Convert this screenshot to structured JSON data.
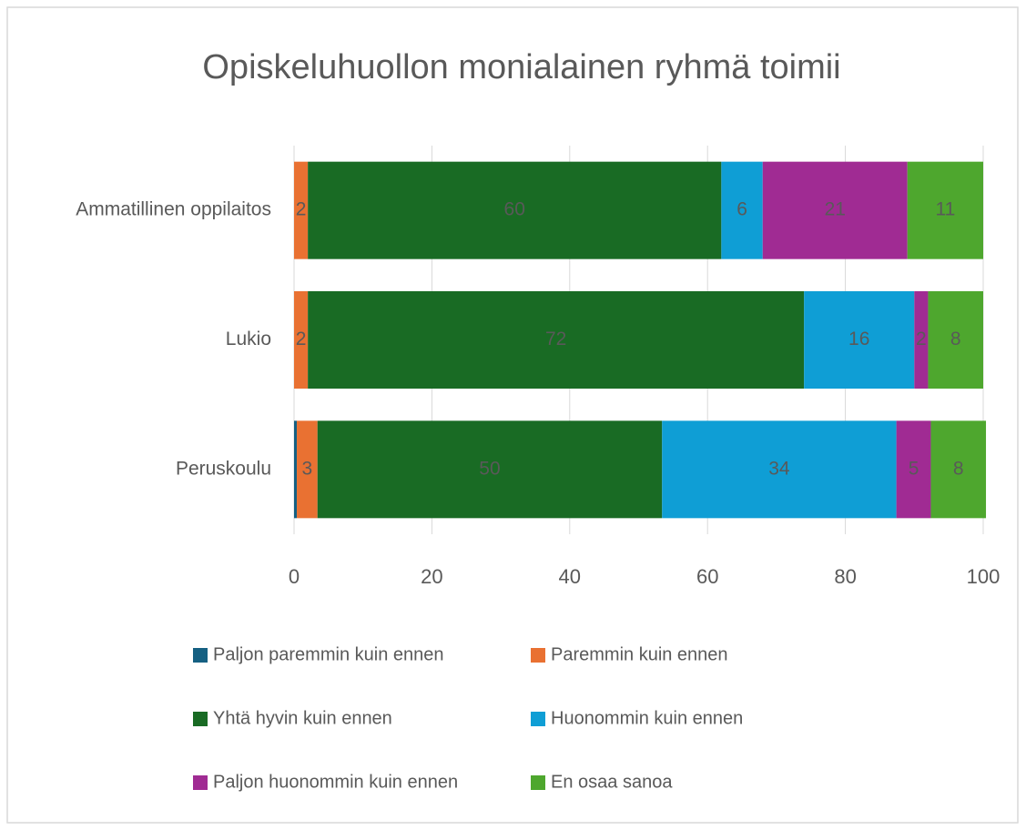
{
  "chart_data": {
    "type": "stacked_barh",
    "title": "Opiskeluhuollon monialainen ryhmä toimii",
    "categories": [
      "Ammatillinen oppilaitos",
      "Lukio",
      "Peruskoulu"
    ],
    "series": [
      {
        "name": "Paljon paremmin kuin ennen",
        "color": "#156082",
        "label_color": "#404040",
        "values": [
          0,
          0,
          0.4
        ]
      },
      {
        "name": "Paremmin kuin ennen",
        "color": "#e97132",
        "label_color": "#404040",
        "values": [
          2,
          2,
          3
        ]
      },
      {
        "name": "Yhtä hyvin kuin ennen",
        "color": "#196b24",
        "label_color": "#ffffff",
        "values": [
          60,
          72,
          50
        ]
      },
      {
        "name": "Huonommin kuin ennen",
        "color": "#0f9ed5",
        "label_color": "#404040",
        "values": [
          6,
          16,
          34
        ]
      },
      {
        "name": "Paljon huonommin kuin ennen",
        "color": "#a02b93",
        "label_color": "#ffffff",
        "values": [
          21,
          2,
          5
        ]
      },
      {
        "name": "En osaa sanoa",
        "color": "#4ea72e",
        "label_color": "#404040",
        "values": [
          11,
          8,
          8
        ]
      }
    ],
    "xlim": [
      0,
      100
    ],
    "xticks": [
      0,
      20,
      40,
      60,
      80,
      100
    ],
    "grid": true,
    "legend": "bottom"
  }
}
